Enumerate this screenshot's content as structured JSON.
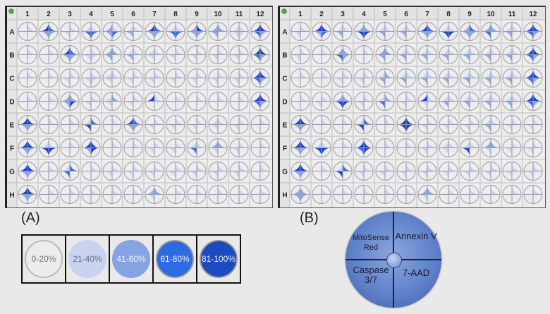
{
  "panels": {
    "a_label": "(A)",
    "b_label": "(B)"
  },
  "columns": [
    "1",
    "2",
    "3",
    "4",
    "5",
    "6",
    "7",
    "8",
    "9",
    "10",
    "11",
    "12"
  ],
  "rows": [
    "A",
    "B",
    "C",
    "D",
    "E",
    "F",
    "G",
    "H"
  ],
  "level_colors": [
    "#e9ebf3",
    "#c8d3f0",
    "#8ea7e6",
    "#3d6de0",
    "#1b42d6"
  ],
  "plates": [
    {
      "name": "A",
      "wells": [
        [
          "0100",
          "4322",
          "0110",
          "1133",
          "2123",
          "1120",
          "4322",
          "1133",
          "2422",
          "2220",
          "1111",
          "4432"
        ],
        [
          "0100",
          "0100",
          "4322",
          "0111",
          "2220",
          "1120",
          "1110",
          "0110",
          "0110",
          "0110",
          "0110",
          "4432"
        ],
        [
          "0100",
          "0100",
          "0110",
          "0111",
          "1110",
          "0110",
          "0110",
          "0110",
          "0110",
          "0110",
          "0110",
          "4432"
        ],
        [
          "0100",
          "0100",
          "2224",
          "0110",
          "1210",
          "0110",
          "4100",
          "0100",
          "0100",
          "0100",
          "0100",
          "4432"
        ],
        [
          "4422",
          "0100",
          "0100",
          "1340",
          "0100",
          "4322",
          "0110",
          "0110",
          "0110",
          "1110",
          "0110",
          "0100"
        ],
        [
          "4422",
          "1144",
          "0100",
          "4424",
          "0100",
          "0100",
          "0110",
          "0110",
          "1130",
          "2210",
          "0110",
          "0100"
        ],
        [
          "4422",
          "0100",
          "1330",
          "0100",
          "0110",
          "0110",
          "0110",
          "0110",
          "0110",
          "0110",
          "0110",
          "0100"
        ],
        [
          "4422",
          "0100",
          "0100",
          "0100",
          "0100",
          "0100",
          "2210",
          "0100",
          "0100",
          "0100",
          "0100",
          "0100"
        ]
      ]
    },
    {
      "name": "B",
      "wells": [
        [
          "0110",
          "4423",
          "1120",
          "2244",
          "1120",
          "1120",
          "4322",
          "1144",
          "2322",
          "2230",
          "1120",
          "4432"
        ],
        [
          "0110",
          "0100",
          "2232",
          "0100",
          "2220",
          "1120",
          "1120",
          "1120",
          "1120",
          "1120",
          "1120",
          "4432"
        ],
        [
          "0100",
          "0100",
          "0110",
          "0110",
          "1220",
          "1120",
          "1120",
          "1120",
          "1120",
          "1120",
          "1120",
          "4432"
        ],
        [
          "0100",
          "0110",
          "2244",
          "0110",
          "1230",
          "0110",
          "4110",
          "1120",
          "1120",
          "1120",
          "1120",
          "4432"
        ],
        [
          "4422",
          "0100",
          "0100",
          "1340",
          "0100",
          "4444",
          "0110",
          "0110",
          "0110",
          "1120",
          "0110",
          "0110"
        ],
        [
          "4422",
          "1144",
          "0100",
          "4434",
          "0100",
          "0100",
          "0110",
          "1110",
          "1140",
          "2210",
          "0110",
          "0110"
        ],
        [
          "4422",
          "0100",
          "1340",
          "0110",
          "0110",
          "0110",
          "0110",
          "0110",
          "0110",
          "0110",
          "0110",
          "0110"
        ],
        [
          "2222",
          "0100",
          "0100",
          "0100",
          "0100",
          "0100",
          "2210",
          "0100",
          "0100",
          "0100",
          "0100",
          "0100"
        ]
      ]
    }
  ],
  "legend": [
    {
      "label": "0-20%",
      "color": "#ececec",
      "text_color": "#777777"
    },
    {
      "label": "21-40%",
      "color": "#c8d3ef",
      "text_color": "#6a7080"
    },
    {
      "label": "41-60%",
      "color": "#86a3e3",
      "text_color": "#f4f6ff"
    },
    {
      "label": "61-80%",
      "color": "#2f6be0",
      "text_color": "#eef2ff"
    },
    {
      "label": "81-100%",
      "color": "#1c4bc0",
      "text_color": "#e8edff"
    }
  ],
  "key": {
    "top_left": "MitoSense Red",
    "top_right": "Annexin V",
    "bottom_left": "Caspase 3/7",
    "bottom_right": "7-AAD"
  }
}
